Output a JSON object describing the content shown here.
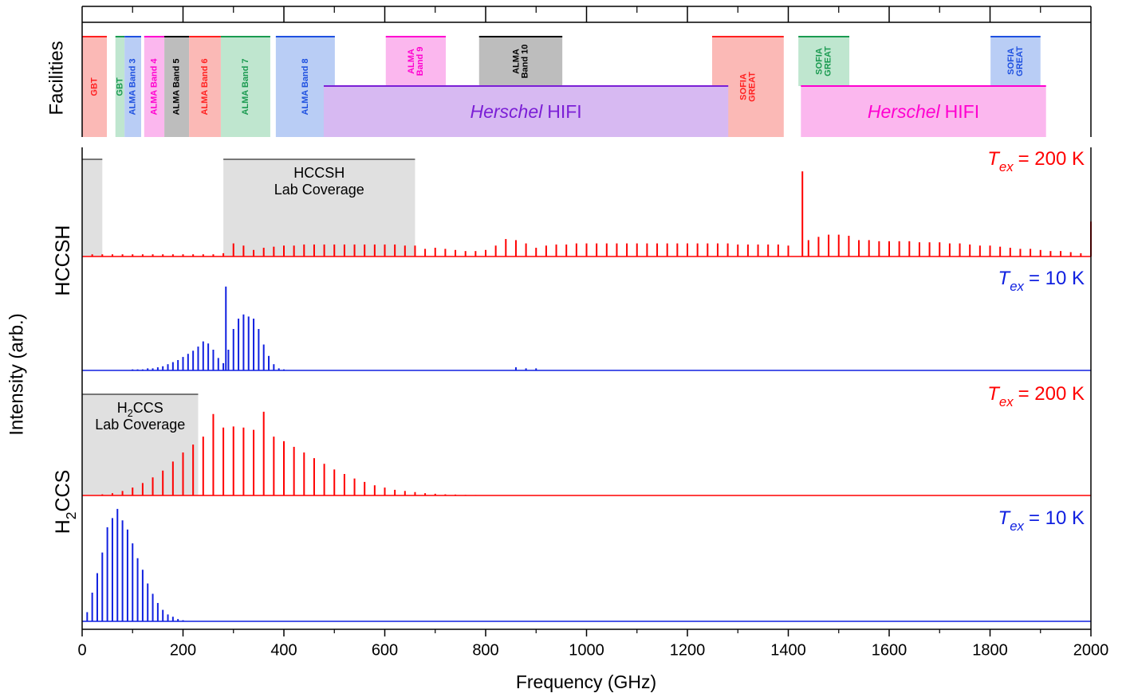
{
  "chart_data": {
    "type": "stacked-spectra",
    "x_label": "Frequency (GHz)",
    "y_label": "Intensity (arb.)",
    "xlim": [
      0,
      2000
    ],
    "xticks": [
      0,
      200,
      400,
      600,
      800,
      1000,
      1200,
      1400,
      1600,
      1800,
      2000
    ],
    "xminor_ticks": [
      100,
      300,
      500,
      700,
      900,
      1100,
      1300,
      1500,
      1700,
      1900
    ],
    "facilities": {
      "label": "Facilities",
      "bands": [
        {
          "label": [
            "GBT"
          ],
          "range": [
            0,
            49
          ],
          "row": "full",
          "color": "#ff2020",
          "fill": "#fbb9b6"
        },
        {
          "label": [
            "GBT"
          ],
          "range": [
            66,
            84
          ],
          "row": "full",
          "color": "#1a9a50",
          "fill": "#bfe6cf"
        },
        {
          "label": [
            "ALMA Band 3"
          ],
          "range": [
            84,
            117
          ],
          "row": "full",
          "color": "#1e50e0",
          "fill": "#b9cdf5"
        },
        {
          "label": [
            "ALMA Band 4"
          ],
          "range": [
            123,
            163
          ],
          "row": "full",
          "color": "#ff00d0",
          "fill": "#fbb7ee"
        },
        {
          "label": [
            "ALMA Band 5"
          ],
          "range": [
            163,
            212
          ],
          "row": "full",
          "color": "#000000",
          "fill": "#bdbdbd"
        },
        {
          "label": [
            "ALMA Band 6"
          ],
          "range": [
            212,
            275
          ],
          "row": "full",
          "color": "#ff2020",
          "fill": "#fbb9b6"
        },
        {
          "label": [
            "ALMA Band 7"
          ],
          "range": [
            275,
            373
          ],
          "row": "full",
          "color": "#1a9a50",
          "fill": "#bfe6cf"
        },
        {
          "label": [
            "ALMA Band 8"
          ],
          "range": [
            384,
            501
          ],
          "row": "full",
          "color": "#1e50e0",
          "fill": "#b9cdf5"
        },
        {
          "label": [
            "ALMA",
            "Band 9"
          ],
          "range": [
            602,
            721
          ],
          "row": "top",
          "color": "#ff00d0",
          "fill": "#fbb7ee"
        },
        {
          "label": [
            "ALMA",
            "Band 10"
          ],
          "range": [
            787,
            952
          ],
          "row": "top",
          "color": "#000000",
          "fill": "#bdbdbd"
        },
        {
          "label": [
            "SOFIA",
            "GREAT"
          ],
          "range": [
            1249,
            1391
          ],
          "row": "full",
          "color": "#ff2020",
          "fill": "#fbb9b6"
        },
        {
          "label": [
            "SOFIA",
            "GREAT"
          ],
          "range": [
            1420,
            1521
          ],
          "row": "top",
          "color": "#1a9a50",
          "fill": "#bfe6cf"
        },
        {
          "label": [
            "SOFIA",
            "GREAT"
          ],
          "range": [
            1801,
            1900
          ],
          "row": "top",
          "color": "#1e50e0",
          "fill": "#b9cdf5"
        },
        {
          "label": [
            "Herschel",
            "HIFI"
          ],
          "range": [
            479,
            1281
          ],
          "row": "bottom",
          "color": "#7b1fd6",
          "fill": "#d7b9f2"
        },
        {
          "label": [
            "Herschel",
            "HIFI"
          ],
          "range": [
            1425,
            1911
          ],
          "row": "bottom",
          "color": "#ff00d0",
          "fill": "#fbb7ee"
        }
      ]
    },
    "molecules": [
      {
        "name": [
          "HCCSH"
        ],
        "coverage": [
          {
            "range": [
              0,
              40
            ]
          },
          {
            "range": [
              280,
              660
            ],
            "label": [
              [
                "HCCSH"
              ],
              [
                "Lab Coverage"
              ]
            ]
          }
        ],
        "spectra": [
          {
            "name": [
              "T",
              "ex",
              "= 200 K"
            ],
            "color": "#ff0000",
            "ylim": [
              0,
              1
            ],
            "x": [
              20,
              40,
              60,
              80,
              100,
              120,
              140,
              160,
              180,
              200,
              220,
              240,
              260,
              280,
              300,
              320,
              340,
              360,
              380,
              400,
              420,
              440,
              460,
              480,
              500,
              520,
              540,
              560,
              580,
              600,
              620,
              640,
              660,
              680,
              700,
              720,
              740,
              760,
              780,
              800,
              820,
              840,
              860,
              880,
              900,
              920,
              940,
              960,
              980,
              1000,
              1020,
              1040,
              1060,
              1080,
              1100,
              1120,
              1140,
              1160,
              1180,
              1200,
              1220,
              1240,
              1260,
              1280,
              1300,
              1320,
              1340,
              1360,
              1380,
              1400,
              1428,
              1440,
              1460,
              1480,
              1500,
              1520,
              1540,
              1560,
              1580,
              1600,
              1620,
              1640,
              1660,
              1680,
              1700,
              1720,
              1740,
              1760,
              1780,
              1800,
              1820,
              1840,
              1860,
              1880,
              1900,
              1920,
              1940,
              1960,
              1980,
              2000
            ],
            "values": [
              0.02,
              0.02,
              0.02,
              0.02,
              0.02,
              0.02,
              0.02,
              0.02,
              0.02,
              0.02,
              0.02,
              0.02,
              0.02,
              0.03,
              0.12,
              0.1,
              0.06,
              0.08,
              0.09,
              0.1,
              0.1,
              0.11,
              0.11,
              0.11,
              0.11,
              0.11,
              0.11,
              0.11,
              0.11,
              0.11,
              0.11,
              0.1,
              0.1,
              0.07,
              0.08,
              0.07,
              0.06,
              0.05,
              0.05,
              0.06,
              0.1,
              0.16,
              0.15,
              0.12,
              0.08,
              0.1,
              0.11,
              0.11,
              0.12,
              0.12,
              0.12,
              0.12,
              0.12,
              0.12,
              0.12,
              0.12,
              0.12,
              0.12,
              0.12,
              0.12,
              0.12,
              0.12,
              0.12,
              0.12,
              0.11,
              0.11,
              0.11,
              0.11,
              0.11,
              0.1,
              0.78,
              0.15,
              0.18,
              0.2,
              0.2,
              0.19,
              0.15,
              0.15,
              0.14,
              0.14,
              0.14,
              0.14,
              0.13,
              0.13,
              0.13,
              0.12,
              0.12,
              0.11,
              0.1,
              0.1,
              0.09,
              0.08,
              0.07,
              0.07,
              0.06,
              0.05,
              0.05,
              0.04,
              0.03,
              0.32
            ]
          },
          {
            "name": [
              "T",
              "ex",
              "= 10 K"
            ],
            "color": "#1020e0",
            "ylim": [
              0,
              1
            ],
            "x": [
              100,
              110,
              120,
              130,
              140,
              150,
              160,
              170,
              180,
              190,
              200,
              210,
              220,
              230,
              240,
              250,
              260,
              270,
              280,
              285,
              290,
              300,
              310,
              320,
              330,
              340,
              350,
              360,
              370,
              380,
              390,
              400,
              860,
              880,
              900
            ],
            "values": [
              0.01,
              0.01,
              0.01,
              0.02,
              0.02,
              0.03,
              0.04,
              0.06,
              0.08,
              0.1,
              0.13,
              0.16,
              0.19,
              0.23,
              0.28,
              0.26,
              0.2,
              0.12,
              0.07,
              0.81,
              0.2,
              0.4,
              0.5,
              0.54,
              0.52,
              0.5,
              0.4,
              0.25,
              0.14,
              0.06,
              0.02,
              0.01,
              0.03,
              0.02,
              0.02
            ]
          }
        ]
      },
      {
        "name": [
          "H",
          "2",
          "CCS"
        ],
        "coverage": [
          {
            "range": [
              0,
              230
            ],
            "label": [
              [
                "H",
                "2",
                "CCS"
              ],
              [
                "Lab Coverage"
              ]
            ]
          }
        ],
        "spectra": [
          {
            "name": [
              "T",
              "ex",
              "= 200 K"
            ],
            "color": "#ff0000",
            "ylim": [
              0,
              1
            ],
            "x": [
              40,
              60,
              80,
              100,
              120,
              140,
              160,
              180,
              200,
              220,
              240,
              260,
              280,
              300,
              320,
              340,
              360,
              380,
              400,
              420,
              440,
              460,
              480,
              500,
              520,
              540,
              560,
              580,
              600,
              620,
              640,
              660,
              680,
              700,
              720,
              740,
              760,
              780,
              800
            ],
            "values": [
              0.01,
              0.02,
              0.04,
              0.07,
              0.11,
              0.16,
              0.22,
              0.3,
              0.38,
              0.45,
              0.52,
              0.72,
              0.6,
              0.61,
              0.6,
              0.58,
              0.74,
              0.52,
              0.48,
              0.43,
              0.38,
              0.33,
              0.28,
              0.23,
              0.19,
              0.15,
              0.12,
              0.09,
              0.07,
              0.05,
              0.04,
              0.03,
              0.02,
              0.015,
              0.01,
              0.008,
              0.005,
              0.004,
              0.003
            ]
          },
          {
            "name": [
              "T",
              "ex",
              "= 10 K"
            ],
            "color": "#1020e0",
            "ylim": [
              0,
              1
            ],
            "x": [
              10,
              20,
              30,
              40,
              50,
              60,
              70,
              80,
              90,
              100,
              110,
              120,
              130,
              140,
              150,
              160,
              170,
              180,
              190,
              200
            ],
            "values": [
              0.08,
              0.25,
              0.42,
              0.6,
              0.82,
              0.9,
              0.98,
              0.88,
              0.8,
              0.68,
              0.55,
              0.45,
              0.33,
              0.24,
              0.16,
              0.1,
              0.06,
              0.04,
              0.02,
              0.01
            ]
          }
        ]
      }
    ]
  }
}
